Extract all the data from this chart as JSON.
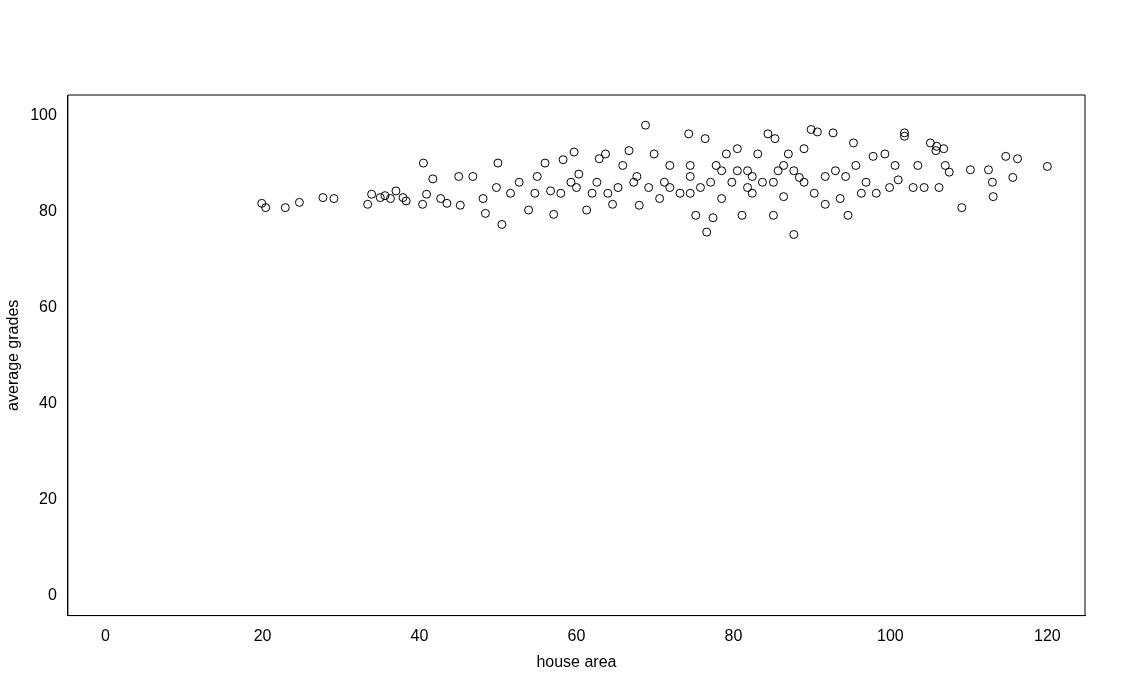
{
  "chart_data": {
    "type": "scatter",
    "xlabel": "house area",
    "ylabel": "average grades",
    "color": "#000000",
    "marker": "circle",
    "grid": false,
    "legend": false,
    "xlim": [
      -4.8,
      124.8
    ],
    "ylim": [
      -4.2,
      104.4
    ],
    "xticks": [
      0,
      20,
      40,
      60,
      80,
      100,
      120
    ],
    "yticks": [
      0,
      20,
      40,
      60,
      80,
      100
    ],
    "x": [
      19.9,
      20.4,
      22.9,
      24.7,
      27.7,
      29.1,
      33.4,
      33.9,
      35,
      35.6,
      36.3,
      37,
      37.9,
      38.3,
      40.5,
      40.4,
      40.9,
      41.7,
      42.7,
      43.5,
      45,
      45.2,
      46.8,
      48.1,
      48.4,
      50,
      50.5,
      49.8,
      51.6,
      52.7,
      53.9,
      55,
      56,
      56.7,
      57.1,
      58.3,
      59.3,
      59.7,
      60.3,
      61.3,
      62,
      62.9,
      63.7,
      64.6,
      65.3,
      65.9,
      66.7,
      67.3,
      68,
      68.8,
      69.2,
      69.9,
      70.6,
      71.2,
      71.9,
      73.2,
      74.3,
      74.5,
      75.2,
      75.8,
      76.6,
      76.4,
      77.4,
      77.8,
      78.5,
      79.1,
      79.8,
      80.5,
      81.1,
      81.8,
      82.4,
      83.1,
      83.7,
      84.4,
      85.1,
      85.3,
      85.7,
      86.4,
      87,
      87.7,
      88.4,
      89,
      89.9,
      90.7,
      90.3,
      91.7,
      92.7,
      93,
      93.6,
      94.6,
      95.3,
      95.6,
      96.3,
      96.9,
      97.8,
      98.2,
      99.3,
      99.9,
      100.6,
      101,
      101.8,
      101.8,
      102.9,
      103.5,
      104.3,
      105.1,
      105.8,
      105.9,
      106.8,
      106.2,
      107,
      107.5,
      109.1,
      110.2,
      112.5,
      113.1,
      113,
      114.7,
      115.6,
      116.2,
      120,
      62.6,
      64,
      67.7,
      71.9,
      74.5,
      77.1,
      80.5,
      82.4,
      85.1,
      87.7,
      89,
      91.7,
      94.3,
      58,
      60,
      54.7,
      74.5,
      78.5,
      81.8,
      86.4
    ],
    "values": [
      81.8,
      80.9,
      80.9,
      82,
      83,
      82.8,
      81.6,
      83.7,
      83,
      83.4,
      82.8,
      84.4,
      83,
      82.3,
      90.2,
      81.6,
      83.7,
      86.9,
      82.8,
      81.8,
      87.4,
      81.4,
      87.4,
      82.8,
      79.7,
      90.2,
      77.4,
      85.1,
      83.9,
      86.2,
      80.4,
      87.4,
      90.2,
      84.4,
      79.5,
      90.9,
      86.2,
      92.5,
      87.9,
      80.4,
      83.9,
      91.1,
      92.1,
      81.6,
      85.1,
      89.7,
      92.8,
      86.2,
      81.4,
      98.1,
      85.1,
      92.1,
      82.8,
      86.2,
      89.7,
      83.9,
      96.3,
      87.4,
      79.3,
      85.1,
      75.8,
      95.3,
      78.8,
      89.7,
      82.8,
      92.1,
      86.2,
      93.2,
      79.3,
      88.6,
      83.9,
      92.1,
      86.2,
      96.3,
      79.3,
      95.3,
      88.6,
      83.2,
      92.1,
      75.3,
      87.2,
      93.2,
      97.2,
      96.7,
      83.9,
      81.6,
      96.5,
      88.6,
      82.8,
      79.3,
      94.4,
      89.7,
      83.9,
      86.2,
      91.6,
      83.9,
      92.1,
      85.1,
      89.7,
      86.7,
      96.5,
      95.8,
      85.1,
      89.7,
      85.1,
      94.4,
      92.8,
      93.7,
      93.2,
      85.1,
      89.7,
      88.3,
      80.9,
      88.8,
      88.8,
      83.2,
      86.2,
      91.6,
      87.2,
      91.1,
      89.5,
      86.2,
      83.9,
      87.4,
      85.1,
      83.9,
      86.2,
      88.6,
      87.4,
      86.2,
      88.6,
      86.2,
      87.4,
      87.4,
      83.9,
      85.1,
      83.9,
      89.7,
      88.6,
      85.1,
      89.7
    ]
  }
}
